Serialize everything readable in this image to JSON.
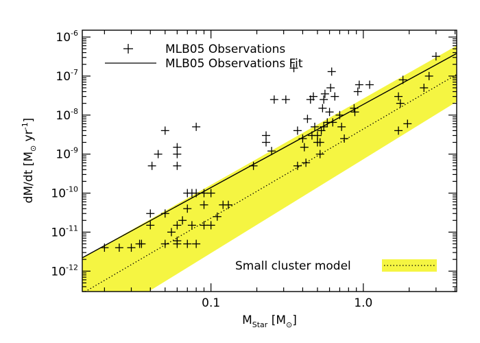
{
  "chart_data": {
    "type": "scatter",
    "x_scale": "log",
    "y_scale": "log",
    "xlim": [
      0.0143,
      4.1
    ],
    "ylim": [
      3e-13,
      1.5e-06
    ],
    "xlabel": {
      "main": "M",
      "sub": "Star",
      "rest": " [M",
      "sym": "⊙",
      "close": "]"
    },
    "ylabel": {
      "main": "dM/dt  [M",
      "sym": "⊙",
      "unit": " yr",
      "sup": "-1",
      "close": "]"
    },
    "x_ticks": [
      {
        "value": 0.1,
        "label": "0.1"
      },
      {
        "value": 1.0,
        "label": "1.0"
      }
    ],
    "y_ticks": [
      {
        "value": 1e-12,
        "base": "10",
        "exp": "-12"
      },
      {
        "value": 1e-11,
        "base": "10",
        "exp": "-11"
      },
      {
        "value": 1e-10,
        "base": "10",
        "exp": "-10"
      },
      {
        "value": 1e-09,
        "base": "10",
        "exp": "-9"
      },
      {
        "value": 1e-08,
        "base": "10",
        "exp": "-8"
      },
      {
        "value": 1e-07,
        "base": "10",
        "exp": "-7"
      },
      {
        "value": 1e-06,
        "base": "10",
        "exp": "-6"
      }
    ],
    "legend": {
      "placement": "top-left",
      "observations_label": "MLB05 Observations",
      "fit_label": "MLB05 Observations Fit"
    },
    "model_legend": {
      "placement": "bottom-right",
      "label": "Small cluster model"
    },
    "fit_line": {
      "points": [
        [
          0.0143,
          2.2e-12
        ],
        [
          4.1,
          3.8e-07
        ]
      ]
    },
    "model_center_line": {
      "points": [
        [
          0.0143,
          2.7e-13
        ],
        [
          4.1,
          1.1e-07
        ]
      ]
    },
    "model_band": {
      "upper": [
        [
          0.0143,
          2.2e-12
        ],
        [
          4.1,
          6e-07
        ]
      ],
      "lower": [
        [
          0.0143,
          2.7e-14
        ],
        [
          4.1,
          2.2e-08
        ]
      ]
    },
    "colors": {
      "band": "#f5f542",
      "markers": "#000000",
      "lines": "#000000"
    },
    "series": [
      {
        "values": [
          [
            0.02,
            4e-12
          ],
          [
            0.025,
            4e-12
          ],
          [
            0.03,
            4e-12
          ],
          [
            0.034,
            5e-12
          ],
          [
            0.035,
            5e-12
          ],
          [
            0.04,
            3e-11
          ],
          [
            0.04,
            1.5e-11
          ],
          [
            0.041,
            5e-10
          ],
          [
            0.045,
            1e-09
          ],
          [
            0.05,
            5e-12
          ],
          [
            0.05,
            3e-11
          ],
          [
            0.05,
            4e-09
          ],
          [
            0.055,
            1e-11
          ],
          [
            0.06,
            6e-12
          ],
          [
            0.06,
            5e-12
          ],
          [
            0.06,
            1.5e-11
          ],
          [
            0.06,
            5e-10
          ],
          [
            0.06,
            1e-09
          ],
          [
            0.06,
            1.5e-09
          ],
          [
            0.065,
            2e-11
          ],
          [
            0.07,
            5e-12
          ],
          [
            0.07,
            4e-11
          ],
          [
            0.07,
            1e-10
          ],
          [
            0.075,
            1.5e-11
          ],
          [
            0.075,
            1e-10
          ],
          [
            0.08,
            5e-12
          ],
          [
            0.08,
            5e-09
          ],
          [
            0.08,
            1e-10
          ],
          [
            0.09,
            5e-11
          ],
          [
            0.09,
            1e-10
          ],
          [
            0.09,
            1.5e-11
          ],
          [
            0.1,
            1e-10
          ],
          [
            0.1,
            1.5e-11
          ],
          [
            0.11,
            2.5e-11
          ],
          [
            0.12,
            5e-11
          ],
          [
            0.13,
            5e-11
          ],
          [
            0.19,
            5e-10
          ],
          [
            0.23,
            3e-09
          ],
          [
            0.23,
            2e-09
          ],
          [
            0.25,
            1.2e-09
          ],
          [
            0.26,
            2.5e-08
          ],
          [
            0.31,
            2.5e-08
          ],
          [
            0.35,
            1.6e-07
          ],
          [
            0.37,
            5e-10
          ],
          [
            0.37,
            4e-09
          ],
          [
            0.4,
            2.5e-09
          ],
          [
            0.41,
            1.5e-09
          ],
          [
            0.42,
            6e-10
          ],
          [
            0.43,
            8e-09
          ],
          [
            0.45,
            2.5e-08
          ],
          [
            0.46,
            3e-09
          ],
          [
            0.47,
            3e-08
          ],
          [
            0.48,
            5e-09
          ],
          [
            0.5,
            2e-09
          ],
          [
            0.5,
            3e-09
          ],
          [
            0.52,
            1e-09
          ],
          [
            0.52,
            2e-09
          ],
          [
            0.53,
            4e-09
          ],
          [
            0.54,
            1.5e-08
          ],
          [
            0.55,
            5e-09
          ],
          [
            0.55,
            2.5e-08
          ],
          [
            0.56,
            3.5e-08
          ],
          [
            0.58,
            6.5e-09
          ],
          [
            0.6,
            1.2e-08
          ],
          [
            0.61,
            5e-08
          ],
          [
            0.62,
            1.3e-07
          ],
          [
            0.63,
            6.5e-09
          ],
          [
            0.65,
            3e-08
          ],
          [
            0.7,
            1e-08
          ],
          [
            0.72,
            5e-09
          ],
          [
            0.75,
            2.5e-09
          ],
          [
            0.87,
            1.5e-08
          ],
          [
            0.88,
            1.2e-08
          ],
          [
            0.92,
            4e-08
          ],
          [
            0.94,
            6e-08
          ],
          [
            1.1,
            6e-08
          ],
          [
            1.7,
            4e-09
          ],
          [
            1.7,
            3e-08
          ],
          [
            1.75,
            2e-08
          ],
          [
            1.82,
            8e-08
          ],
          [
            1.95,
            6e-09
          ],
          [
            2.5,
            5e-08
          ],
          [
            2.7,
            1e-07
          ],
          [
            3.0,
            3.2e-07
          ]
        ]
      }
    ]
  }
}
